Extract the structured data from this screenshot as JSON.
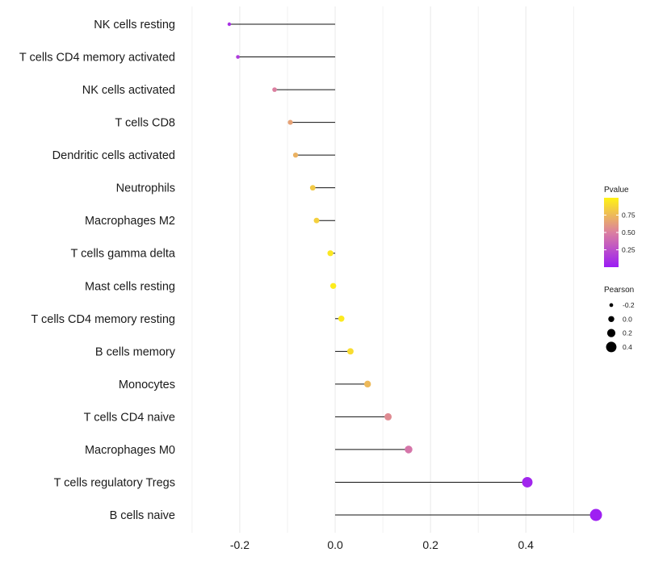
{
  "chart_data": {
    "type": "lollipop",
    "title": "",
    "xlabel": "",
    "ylabel": "",
    "xlim": [
      -0.31,
      0.53
    ],
    "x_ticks": [
      -0.2,
      0.0,
      0.2,
      0.4
    ],
    "x_tick_labels": [
      "-0.2",
      "0.0",
      "0.2",
      "0.4"
    ],
    "grid": true,
    "categories": [
      "NK cells resting",
      "T cells CD4 memory activated",
      "NK cells activated",
      "T cells CD8",
      "Dendritic cells activated",
      "Neutrophils",
      "Macrophages M2",
      "T cells gamma delta",
      "Mast cells resting",
      "T cells CD4 memory resting",
      "B cells memory",
      "Monocytes",
      "T cells CD4 naive",
      "Macrophages M0",
      "T cells regulatory  Tregs",
      "B cells naive"
    ],
    "pearson": [
      -0.222,
      -0.204,
      -0.127,
      -0.094,
      -0.083,
      -0.047,
      -0.039,
      -0.01,
      -0.004,
      0.013,
      0.032,
      0.068,
      0.111,
      0.154,
      0.403,
      0.547
    ],
    "pvalue": [
      0.1,
      0.15,
      0.5,
      0.65,
      0.72,
      0.82,
      0.85,
      0.95,
      0.97,
      0.96,
      0.9,
      0.75,
      0.55,
      0.45,
      0.05,
      0.02
    ],
    "legend": {
      "color_title": "Pvalue",
      "color_ticks": [
        0.25,
        0.5,
        0.75
      ],
      "color_tick_labels": [
        "0.25",
        "0.50",
        "0.75"
      ],
      "color_range": [
        0.0,
        1.0
      ],
      "size_title": "Pearson",
      "size_values": [
        -0.2,
        0.0,
        0.2,
        0.4
      ],
      "size_labels": [
        "-0.2",
        "0.0",
        "0.2",
        "0.4"
      ],
      "placement": "right"
    },
    "colors": {
      "low": "#9b1cf5",
      "mid": "#db7fa0",
      "high": "#fff314",
      "stem": "#111111",
      "grid": "#ebebeb"
    }
  }
}
